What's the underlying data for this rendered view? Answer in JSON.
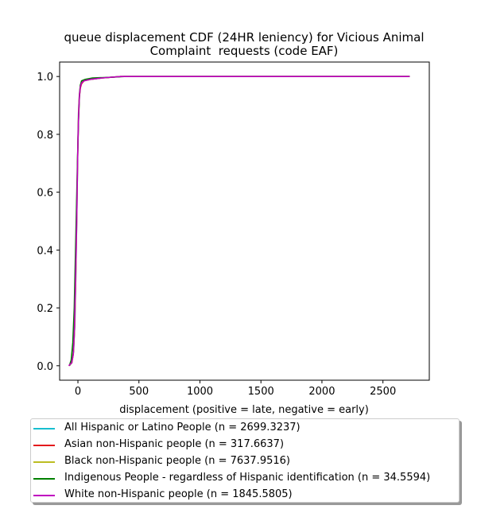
{
  "chart_data": {
    "type": "line",
    "title_line1": "queue displacement CDF (24HR leniency) for Vicious Animal",
    "title_line2": "Complaint  requests (code EAF)",
    "xlabel": "displacement (positive = late, negative = early)",
    "ylabel": "",
    "xlim": [
      -150,
      2880
    ],
    "ylim": [
      -0.05,
      1.05
    ],
    "xticks": [
      0,
      500,
      1000,
      1500,
      2000,
      2500
    ],
    "yticks": [
      0.0,
      0.2,
      0.4,
      0.6,
      0.8,
      1.0
    ],
    "xtick_labels": [
      "0",
      "500",
      "1000",
      "1500",
      "2000",
      "2500"
    ],
    "ytick_labels": [
      "0.0",
      "0.2",
      "0.4",
      "0.6",
      "0.8",
      "1.0"
    ],
    "grid": false,
    "legend_position": "below",
    "series": [
      {
        "name": "All Hispanic or Latino People (n = 2699.3237)",
        "color": "#17becf",
        "x": [
          -70,
          -50,
          -35,
          -25,
          -18,
          -10,
          -5,
          0,
          5,
          12,
          20,
          30,
          50,
          100,
          200,
          350,
          2720
        ],
        "y": [
          0.0,
          0.01,
          0.05,
          0.15,
          0.3,
          0.5,
          0.65,
          0.78,
          0.88,
          0.94,
          0.97,
          0.98,
          0.985,
          0.99,
          0.995,
          1.0,
          1.0
        ]
      },
      {
        "name": "Asian non-Hispanic people (n = 317.6637)",
        "color": "#e41a1c",
        "x": [
          -75,
          -50,
          -38,
          -28,
          -20,
          -12,
          -6,
          0,
          6,
          12,
          20,
          30,
          50,
          100,
          200,
          350,
          2720
        ],
        "y": [
          0.0,
          0.01,
          0.04,
          0.12,
          0.28,
          0.48,
          0.64,
          0.76,
          0.87,
          0.93,
          0.96,
          0.975,
          0.985,
          0.99,
          0.995,
          1.0,
          1.0
        ]
      },
      {
        "name": "Black non-Hispanic people (n = 7637.9516)",
        "color": "#bcbd22",
        "x": [
          -70,
          -52,
          -36,
          -26,
          -18,
          -10,
          -5,
          0,
          5,
          12,
          20,
          30,
          50,
          100,
          200,
          350,
          2720
        ],
        "y": [
          0.0,
          0.01,
          0.05,
          0.14,
          0.3,
          0.5,
          0.65,
          0.78,
          0.88,
          0.94,
          0.97,
          0.98,
          0.985,
          0.99,
          0.995,
          1.0,
          1.0
        ]
      },
      {
        "name": "Indigenous People - regardless of Hispanic identification (n = 34.5594)",
        "color": "#008000",
        "x": [
          -70,
          -55,
          -42,
          -30,
          -22,
          -12,
          -4,
          5,
          12,
          20,
          30,
          60,
          120,
          250,
          380,
          2720
        ],
        "y": [
          0.0,
          0.02,
          0.08,
          0.2,
          0.35,
          0.55,
          0.7,
          0.85,
          0.93,
          0.97,
          0.985,
          0.99,
          0.995,
          0.997,
          1.0,
          1.0
        ]
      },
      {
        "name": "White non-Hispanic people (n = 1845.5805)",
        "color": "#bf00bf",
        "x": [
          -75,
          -52,
          -38,
          -28,
          -20,
          -10,
          -5,
          0,
          6,
          12,
          20,
          30,
          50,
          100,
          200,
          350,
          2720
        ],
        "y": [
          0.0,
          0.01,
          0.04,
          0.13,
          0.29,
          0.5,
          0.65,
          0.77,
          0.87,
          0.935,
          0.965,
          0.978,
          0.985,
          0.99,
          0.995,
          1.0,
          1.0
        ]
      }
    ]
  }
}
